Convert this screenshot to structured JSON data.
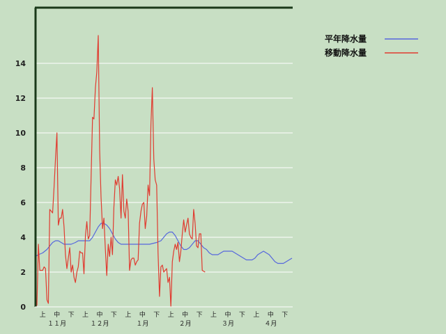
{
  "chart_data": {
    "type": "line",
    "xlabel": "",
    "ylabel": "",
    "ylim": [
      0,
      16
    ],
    "yticks": [
      0,
      2,
      4,
      6,
      8,
      10,
      12,
      14
    ],
    "grid": true,
    "legend_position": "top-right",
    "x_period_labels": [
      "上",
      "中",
      "下",
      "上",
      "中",
      "下",
      "上",
      "中",
      "下",
      "上",
      "中",
      "下",
      "上",
      "中",
      "下",
      "上",
      "中",
      "下"
    ],
    "x_month_labels": [
      "１１月",
      "１２月",
      "１月",
      "２月",
      "３月",
      "４月"
    ],
    "x_range_days": [
      0,
      180
    ],
    "series": [
      {
        "name": "平年降水量",
        "color": "#5566dd",
        "x": [
          0,
          2,
          5,
          8,
          10,
          12,
          14,
          16,
          18,
          20,
          22,
          25,
          28,
          30,
          35,
          38,
          40,
          42,
          44,
          46,
          48,
          50,
          52,
          54,
          56,
          58,
          60,
          62,
          64,
          66,
          70,
          75,
          80,
          85,
          88,
          90,
          92,
          94,
          96,
          98,
          100,
          102,
          104,
          106,
          108,
          110,
          112,
          114,
          116,
          118,
          120,
          122,
          124,
          126,
          128,
          130,
          132,
          134,
          136,
          138,
          140,
          142,
          144,
          146,
          148,
          150,
          152,
          154,
          156,
          158,
          160,
          162,
          164,
          166,
          168,
          170,
          172,
          174,
          176,
          178,
          180
        ],
        "values": [
          2.9,
          3.0,
          3.1,
          3.3,
          3.5,
          3.7,
          3.8,
          3.8,
          3.7,
          3.6,
          3.6,
          3.6,
          3.7,
          3.8,
          3.8,
          3.8,
          4.0,
          4.3,
          4.6,
          4.8,
          4.8,
          4.7,
          4.5,
          4.2,
          3.9,
          3.7,
          3.6,
          3.6,
          3.6,
          3.6,
          3.6,
          3.6,
          3.6,
          3.7,
          3.8,
          4.0,
          4.2,
          4.3,
          4.3,
          4.1,
          3.8,
          3.5,
          3.3,
          3.3,
          3.4,
          3.6,
          3.8,
          3.8,
          3.6,
          3.4,
          3.3,
          3.1,
          3.0,
          3.0,
          3.0,
          3.1,
          3.2,
          3.2,
          3.2,
          3.2,
          3.1,
          3.0,
          2.9,
          2.8,
          2.7,
          2.7,
          2.7,
          2.8,
          3.0,
          3.1,
          3.2,
          3.1,
          3.0,
          2.8,
          2.6,
          2.5,
          2.5,
          2.5,
          2.6,
          2.7,
          2.8
        ]
      },
      {
        "name": "移動降水量",
        "color": "#e03a2f",
        "x": [
          0,
          1,
          2,
          3,
          4,
          5,
          6,
          7,
          8,
          9,
          10,
          11,
          12,
          13,
          14,
          15,
          16,
          17,
          18,
          19,
          20,
          21,
          22,
          23,
          24,
          25,
          26,
          27,
          28,
          29,
          30,
          31,
          32,
          33,
          34,
          35,
          36,
          37,
          38,
          39,
          40,
          41,
          42,
          43,
          44,
          45,
          46,
          47,
          48,
          49,
          50,
          51,
          52,
          53,
          54,
          55,
          56,
          57,
          58,
          59,
          60,
          61,
          62,
          63,
          64,
          65,
          66,
          67,
          68,
          69,
          70,
          71,
          72,
          73,
          74,
          75,
          76,
          77,
          78,
          79,
          80,
          81,
          82,
          83,
          84,
          85,
          86,
          87,
          88,
          89,
          90,
          91,
          92,
          93,
          94,
          95,
          96,
          97,
          98,
          99,
          100,
          101,
          102,
          103,
          104,
          105,
          106,
          107,
          108,
          109,
          110,
          111,
          112,
          113,
          114,
          115,
          116,
          117,
          118,
          119,
          120,
          121,
          122,
          123,
          124,
          125,
          126,
          127,
          128,
          129,
          130,
          131,
          132,
          133,
          134,
          135,
          136,
          137,
          138,
          139,
          140,
          141,
          142,
          143,
          144,
          145,
          146,
          147,
          148,
          149,
          150
        ],
        "values": [
          0,
          0.1,
          3.6,
          2.1,
          2.1,
          2.1,
          2.3,
          2.2,
          0.4,
          0.2,
          5.6,
          5.5,
          5.4,
          6.9,
          8.5,
          10.0,
          4.7,
          5.1,
          5.1,
          5.6,
          4.6,
          3.0,
          2.2,
          2.8,
          3.4,
          2.0,
          2.4,
          1.7,
          1.4,
          2.0,
          2.3,
          3.2,
          3.1,
          3.1,
          1.9,
          4.1,
          4.9,
          3.9,
          4.1,
          7.4,
          10.9,
          10.8,
          12.6,
          13.5,
          15.6,
          9.0,
          6.3,
          4.5,
          5.1,
          3.3,
          1.8,
          3.6,
          2.9,
          4.0,
          3.0,
          5.7,
          7.3,
          7.0,
          7.5,
          6.8,
          5.1,
          7.6,
          5.5,
          5.1,
          6.2,
          5.5,
          2.1,
          2.7,
          2.8,
          2.8,
          2.4,
          2.6,
          2.7,
          4.8,
          5.5,
          5.9,
          6.0,
          4.5,
          5.2,
          7.0,
          6.4,
          10.5,
          12.6,
          8.5,
          7.3,
          7.0,
          3.1,
          0.6,
          2.3,
          2.4,
          2.0,
          2.1,
          2.2,
          1.4,
          1.7,
          0.0,
          2.6,
          3.2,
          3.6,
          3.3,
          3.7,
          2.6,
          3.2,
          4.2,
          5.0,
          4.3,
          4.7,
          5.1,
          4.2,
          4.0,
          3.9,
          5.6,
          4.8,
          3.5,
          3.4,
          4.2,
          4.2,
          2.1,
          2.05,
          2.0,
          null,
          null,
          null,
          null,
          null,
          null,
          null,
          null,
          null,
          null,
          null,
          null,
          null,
          null,
          null,
          null,
          null,
          null,
          null,
          null,
          null,
          null,
          null,
          null,
          null,
          null,
          null,
          null,
          null,
          null,
          null
        ]
      }
    ]
  }
}
